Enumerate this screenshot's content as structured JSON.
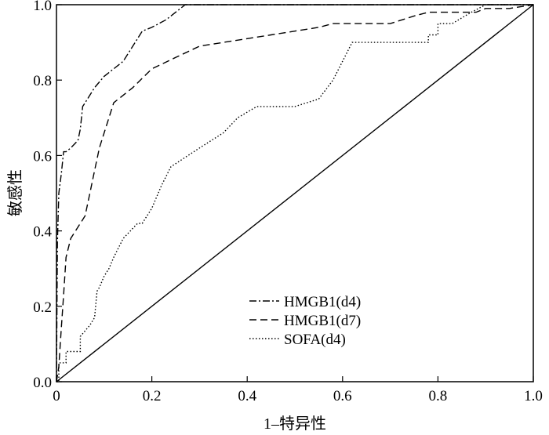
{
  "chart_data": {
    "type": "line",
    "title": "",
    "xlabel": "1–特异性",
    "ylabel": "敏感性",
    "xlim": [
      0,
      1
    ],
    "ylim": [
      0,
      1
    ],
    "x_ticks": [
      "0",
      "0.2",
      "0.4",
      "0.6",
      "0.8",
      "1.0"
    ],
    "y_ticks": [
      "0.0",
      "0.2",
      "0.4",
      "0.6",
      "0.8",
      "1.0"
    ],
    "grid": false,
    "legend_position": "lower-center",
    "series": [
      {
        "name": "HMGB1(d4)",
        "style": "dash-dot",
        "x": [
          0,
          0.002,
          0.005,
          0.01,
          0.015,
          0.02,
          0.03,
          0.045,
          0.05,
          0.055,
          0.06,
          0.07,
          0.08,
          0.1,
          0.12,
          0.14,
          0.16,
          0.18,
          0.2,
          0.23,
          0.25,
          0.27,
          0.3,
          0.4,
          0.6,
          1.0
        ],
        "y": [
          0,
          0.37,
          0.5,
          0.55,
          0.61,
          0.61,
          0.62,
          0.64,
          0.67,
          0.73,
          0.74,
          0.76,
          0.78,
          0.81,
          0.83,
          0.85,
          0.89,
          0.93,
          0.94,
          0.96,
          0.98,
          1.0,
          1.0,
          1.0,
          1.0,
          1.0
        ]
      },
      {
        "name": "HMGB1(d7)",
        "style": "dashed",
        "x": [
          0,
          0.005,
          0.01,
          0.015,
          0.02,
          0.03,
          0.04,
          0.05,
          0.06,
          0.07,
          0.08,
          0.09,
          0.1,
          0.12,
          0.16,
          0.2,
          0.25,
          0.3,
          0.35,
          0.4,
          0.45,
          0.5,
          0.55,
          0.58,
          0.62,
          0.7,
          0.75,
          0.78,
          0.82,
          0.88,
          0.9,
          0.95,
          1.0
        ],
        "y": [
          0,
          0.04,
          0.14,
          0.23,
          0.33,
          0.38,
          0.4,
          0.42,
          0.44,
          0.5,
          0.56,
          0.62,
          0.66,
          0.74,
          0.78,
          0.83,
          0.86,
          0.89,
          0.9,
          0.91,
          0.92,
          0.93,
          0.94,
          0.95,
          0.95,
          0.95,
          0.97,
          0.98,
          0.98,
          0.98,
          0.99,
          0.99,
          1.0
        ]
      },
      {
        "name": "SOFA(d4)",
        "style": "dotted",
        "x": [
          0,
          0.005,
          0.005,
          0.02,
          0.02,
          0.05,
          0.05,
          0.07,
          0.08,
          0.085,
          0.09,
          0.1,
          0.11,
          0.12,
          0.14,
          0.17,
          0.18,
          0.2,
          0.22,
          0.24,
          0.3,
          0.35,
          0.38,
          0.42,
          0.5,
          0.55,
          0.58,
          0.62,
          0.7,
          0.78,
          0.78,
          0.8,
          0.8,
          0.83,
          0.87,
          0.9,
          1.0
        ],
        "y": [
          0,
          0,
          0.05,
          0.05,
          0.08,
          0.08,
          0.12,
          0.15,
          0.17,
          0.24,
          0.25,
          0.28,
          0.3,
          0.33,
          0.38,
          0.42,
          0.42,
          0.46,
          0.52,
          0.57,
          0.62,
          0.66,
          0.7,
          0.73,
          0.73,
          0.75,
          0.8,
          0.9,
          0.9,
          0.9,
          0.92,
          0.92,
          0.95,
          0.95,
          0.98,
          1.0,
          1.0
        ]
      },
      {
        "name": "",
        "style": "solid",
        "x": [
          0,
          1
        ],
        "y": [
          0,
          1
        ]
      }
    ]
  }
}
